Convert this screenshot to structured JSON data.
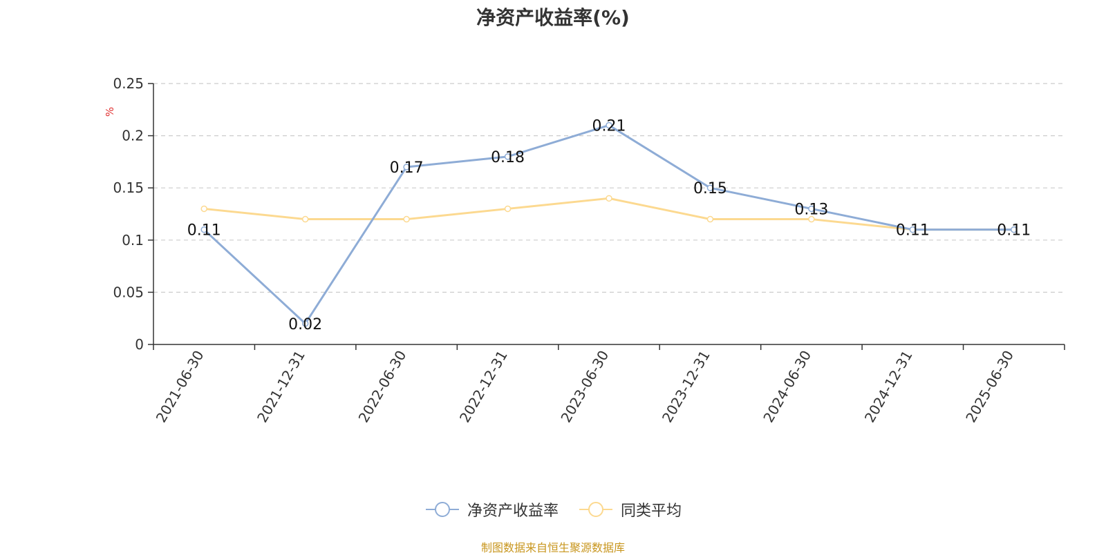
{
  "chart_data": {
    "type": "line",
    "title": "净资产收益率(%)",
    "ylabel": "%",
    "xlabel": "",
    "categories": [
      "2021-06-30",
      "2021-12-31",
      "2022-06-30",
      "2022-12-31",
      "2023-06-30",
      "2023-12-31",
      "2024-06-30",
      "2024-12-31",
      "2025-06-30"
    ],
    "ylim": [
      0,
      0.25
    ],
    "yticks": [
      "0",
      "0.05",
      "0.1",
      "0.15",
      "0.2",
      "0.25"
    ],
    "grid": true,
    "legend_position": "bottom",
    "series": [
      {
        "name": "净资产收益率",
        "color": "#8eacd6",
        "values": [
          0.11,
          0.02,
          0.17,
          0.18,
          0.21,
          0.15,
          0.13,
          0.11,
          0.11
        ],
        "labels": [
          "0.11",
          "0.02",
          "0.17",
          "0.18",
          "0.21",
          "0.15",
          "0.13",
          "0.11",
          "0.11"
        ]
      },
      {
        "name": "同类平均",
        "color": "#fcd990",
        "values": [
          0.13,
          0.12,
          0.12,
          0.13,
          0.14,
          0.12,
          0.12,
          0.11,
          0.11
        ]
      }
    ]
  },
  "source_note": "制图数据来自恒生聚源数据库"
}
